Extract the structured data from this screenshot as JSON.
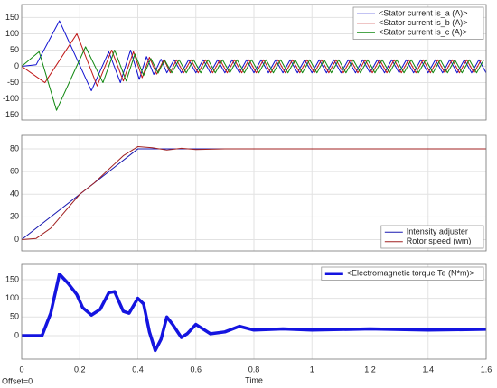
{
  "chart_data": [
    {
      "type": "line",
      "xlim": [
        0,
        1.6
      ],
      "ylim": [
        -165,
        190
      ],
      "xticks": [
        0,
        0.2,
        0.4,
        0.6,
        0.8,
        1,
        1.2,
        1.4,
        1.6
      ],
      "yticks": [
        150,
        100,
        50,
        0,
        -50,
        -100,
        -150
      ],
      "grid": true,
      "show_xtick_labels": false,
      "legend": "upper right",
      "series": [
        {
          "name": "<Stator current is_a (A)>",
          "color": "#1010d0",
          "line_width": 1,
          "x": [
            0,
            0.05,
            0.13,
            0.24,
            0.3,
            0.34,
            0.375,
            0.405,
            0.43,
            0.455,
            0.48,
            0.5,
            0.525,
            0.55,
            0.575,
            0.6,
            0.625,
            0.65,
            0.675,
            0.7,
            0.725,
            0.75,
            0.775,
            0.8,
            0.825,
            0.85,
            0.875,
            0.9,
            0.925,
            0.95,
            0.975,
            1,
            1.025,
            1.05,
            1.075,
            1.1,
            1.125,
            1.15,
            1.175,
            1.2,
            1.225,
            1.25,
            1.275,
            1.3,
            1.325,
            1.35,
            1.375,
            1.4,
            1.425,
            1.45,
            1.475,
            1.5,
            1.525,
            1.55,
            1.575,
            1.6
          ],
          "values": [
            0,
            5,
            140,
            -75,
            45,
            -50,
            50,
            -40,
            30,
            -25,
            22,
            -20,
            20,
            -20,
            20,
            -20,
            20,
            -20,
            20,
            -20,
            20,
            -20,
            20,
            -20,
            20,
            -20,
            20,
            -20,
            20,
            -20,
            20,
            -20,
            20,
            -20,
            20,
            -20,
            20,
            -20,
            20,
            -20,
            20,
            -20,
            20,
            -20,
            20,
            -20,
            20,
            -20,
            20,
            -20,
            20,
            -20,
            20,
            -20,
            20,
            -20
          ]
        },
        {
          "name": "<Stator current is_b (A)>",
          "color": "#c01818",
          "line_width": 1,
          "x": [
            0,
            0.08,
            0.19,
            0.26,
            0.31,
            0.35,
            0.385,
            0.415,
            0.44,
            0.465,
            0.49,
            0.512,
            0.533,
            0.558,
            0.583,
            0.608,
            0.633,
            0.658,
            0.683,
            0.708,
            0.733,
            0.758,
            0.783,
            0.808,
            0.833,
            0.858,
            0.883,
            0.908,
            0.933,
            0.958,
            0.983,
            1.008,
            1.033,
            1.058,
            1.083,
            1.108,
            1.133,
            1.158,
            1.183,
            1.208,
            1.233,
            1.258,
            1.283,
            1.308,
            1.333,
            1.358,
            1.383,
            1.408,
            1.433,
            1.458,
            1.483,
            1.508,
            1.533,
            1.558,
            1.583
          ],
          "values": [
            0,
            -50,
            100,
            -60,
            50,
            -45,
            45,
            -35,
            28,
            -24,
            21,
            -20,
            20,
            -20,
            20,
            -20,
            20,
            -20,
            20,
            -20,
            20,
            -20,
            20,
            -20,
            20,
            -20,
            20,
            -20,
            20,
            -20,
            20,
            -20,
            20,
            -20,
            20,
            -20,
            20,
            -20,
            20,
            -20,
            20,
            -20,
            20,
            -20,
            20,
            -20,
            20,
            -20,
            20,
            -20,
            20,
            -20,
            20,
            -20,
            20
          ]
        },
        {
          "name": "<Stator current is_c (A)>",
          "color": "#108810",
          "line_width": 1,
          "x": [
            0,
            0.06,
            0.12,
            0.22,
            0.28,
            0.32,
            0.36,
            0.39,
            0.42,
            0.445,
            0.47,
            0.492,
            0.517,
            0.542,
            0.567,
            0.592,
            0.617,
            0.642,
            0.667,
            0.692,
            0.717,
            0.742,
            0.767,
            0.792,
            0.817,
            0.842,
            0.867,
            0.892,
            0.917,
            0.942,
            0.967,
            0.992,
            1.017,
            1.042,
            1.067,
            1.092,
            1.117,
            1.142,
            1.167,
            1.192,
            1.217,
            1.242,
            1.267,
            1.292,
            1.317,
            1.342,
            1.367,
            1.392,
            1.417,
            1.442,
            1.467,
            1.492,
            1.517,
            1.542,
            1.567,
            1.592
          ],
          "values": [
            0,
            45,
            -135,
            60,
            -50,
            50,
            -45,
            38,
            -28,
            24,
            -21,
            20,
            -20,
            20,
            -20,
            20,
            -20,
            20,
            -20,
            20,
            -20,
            20,
            -20,
            20,
            -20,
            20,
            -20,
            20,
            -20,
            20,
            -20,
            20,
            -20,
            20,
            -20,
            20,
            -20,
            20,
            -20,
            20,
            -20,
            20,
            -20,
            20,
            -20,
            20,
            -20,
            20,
            -20,
            20,
            -20,
            20,
            -20,
            20,
            -20,
            20
          ]
        }
      ]
    },
    {
      "type": "line",
      "xlim": [
        0,
        1.6
      ],
      "ylim": [
        -10,
        92
      ],
      "xticks": [
        0,
        0.2,
        0.4,
        0.6,
        0.8,
        1,
        1.2,
        1.4,
        1.6
      ],
      "yticks": [
        80,
        60,
        40,
        20,
        0
      ],
      "grid": true,
      "show_xtick_labels": false,
      "legend": "lower right",
      "series": [
        {
          "name": "Intensity adjuster",
          "color": "#1818b0",
          "line_width": 1,
          "x": [
            0,
            0.4,
            1.6
          ],
          "values": [
            0,
            80,
            80
          ]
        },
        {
          "name": "Rotor speed (wm)",
          "color": "#a02020",
          "line_width": 1,
          "x": [
            0,
            0.05,
            0.1,
            0.15,
            0.2,
            0.25,
            0.3,
            0.35,
            0.4,
            0.45,
            0.5,
            0.55,
            0.6,
            0.7,
            1.6
          ],
          "values": [
            0,
            1,
            10,
            25,
            40,
            50,
            62,
            74,
            82,
            81,
            79,
            80.5,
            79.5,
            80,
            80
          ]
        }
      ]
    },
    {
      "type": "line",
      "xlim": [
        0,
        1.6
      ],
      "ylim": [
        -63,
        191
      ],
      "xticks": [
        0,
        0.2,
        0.4,
        0.6,
        0.8,
        1,
        1.2,
        1.4,
        1.6
      ],
      "yticks": [
        150,
        100,
        50,
        0
      ],
      "grid": true,
      "show_xtick_labels": true,
      "legend": "upper right",
      "xlabel": "Time",
      "series": [
        {
          "name": "<Electromagnetic torque Te (N*m)>",
          "color": "#1414e0",
          "line_width": 3.5,
          "x": [
            0,
            0.07,
            0.1,
            0.13,
            0.16,
            0.19,
            0.21,
            0.24,
            0.27,
            0.3,
            0.32,
            0.35,
            0.37,
            0.4,
            0.42,
            0.44,
            0.46,
            0.48,
            0.5,
            0.52,
            0.55,
            0.57,
            0.6,
            0.62,
            0.65,
            0.7,
            0.75,
            0.8,
            0.9,
            1,
            1.2,
            1.4,
            1.6
          ],
          "values": [
            0,
            0,
            60,
            165,
            140,
            110,
            75,
            55,
            70,
            115,
            118,
            65,
            60,
            100,
            85,
            10,
            -40,
            -10,
            50,
            30,
            -5,
            5,
            30,
            20,
            5,
            10,
            25,
            15,
            18,
            15,
            18,
            15,
            17
          ]
        }
      ]
    }
  ],
  "footer": {
    "offset": "Offset=0"
  }
}
